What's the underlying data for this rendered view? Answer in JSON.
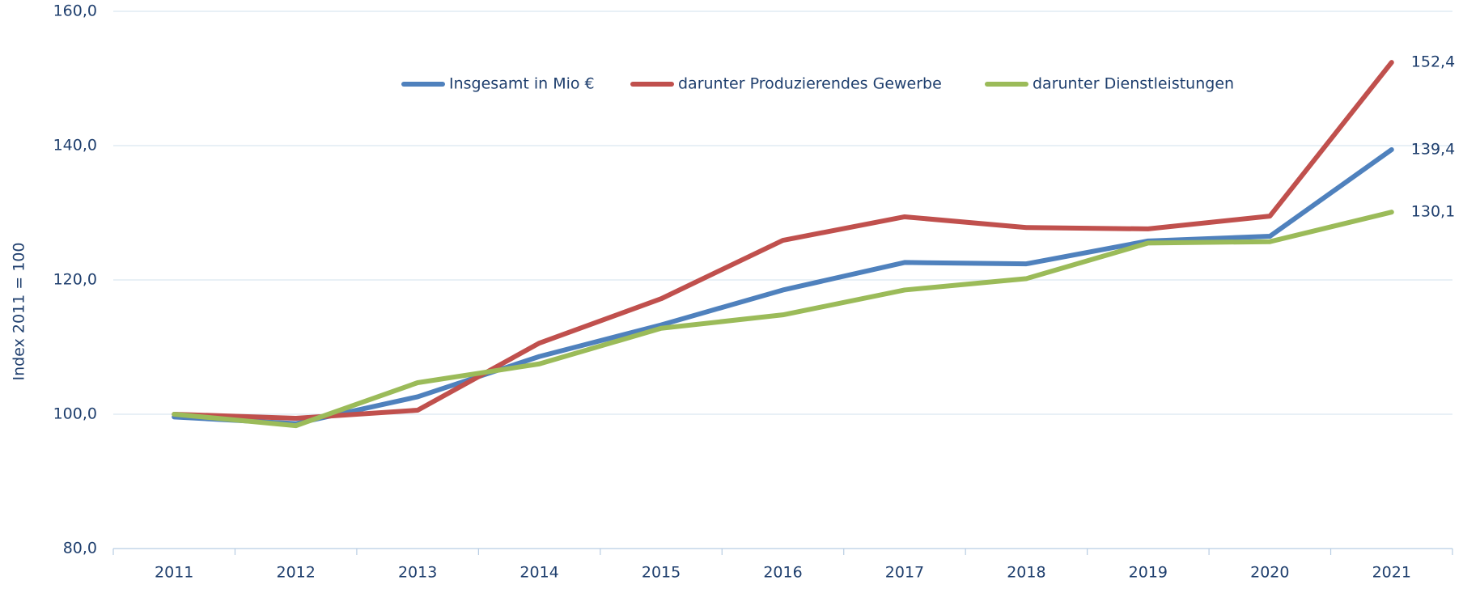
{
  "chart_data": {
    "type": "line",
    "ylabel": "Index 2011 = 100",
    "categories": [
      "2011",
      "2012",
      "2013",
      "2014",
      "2015",
      "2016",
      "2017",
      "2018",
      "2019",
      "2020",
      "2021"
    ],
    "series": [
      {
        "name": "Insgesamt in Mio €",
        "color": "#4f81bd",
        "values": [
          99.6,
          98.6,
          102.6,
          108.6,
          113.3,
          118.5,
          122.6,
          122.4,
          125.8,
          126.5,
          139.4
        ],
        "value_labels": [
          null,
          null,
          null,
          null,
          null,
          null,
          null,
          null,
          null,
          null,
          "139,4"
        ]
      },
      {
        "name": "darunter Produzierendes Gewerbe",
        "color": "#c0504d",
        "values": [
          100.0,
          99.4,
          100.6,
          110.6,
          117.2,
          125.9,
          129.4,
          127.8,
          127.6,
          129.5,
          152.4
        ],
        "value_labels": [
          null,
          null,
          null,
          null,
          null,
          null,
          null,
          null,
          null,
          null,
          "152,4"
        ]
      },
      {
        "name": "darunter Dienstleistungen",
        "color": "#9bbb59",
        "values": [
          100.0,
          98.3,
          104.7,
          107.5,
          112.8,
          114.8,
          118.5,
          120.2,
          125.5,
          125.7,
          130.1
        ],
        "value_labels": [
          null,
          null,
          null,
          null,
          null,
          null,
          null,
          null,
          null,
          null,
          "130,1"
        ]
      }
    ],
    "ylim": [
      80,
      160
    ],
    "yticks": [
      {
        "value": 80,
        "label": "80,0"
      },
      {
        "value": 100,
        "label": "100,0"
      },
      {
        "value": 120,
        "label": "120,0"
      },
      {
        "value": 140,
        "label": "140,0"
      },
      {
        "value": 160,
        "label": "160,0"
      }
    ],
    "grid": true,
    "legend": "top"
  }
}
